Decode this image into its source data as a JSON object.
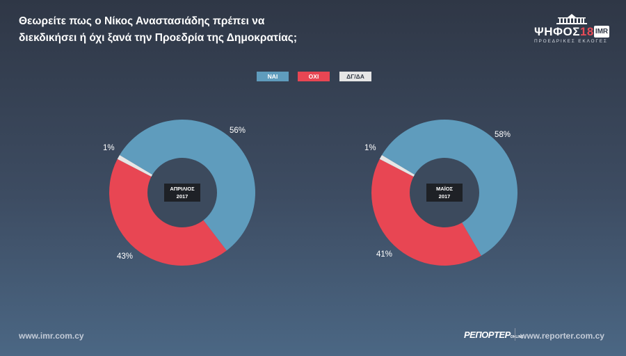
{
  "header": {
    "title_line1": "Θεωρείτε πως ο Νίκος Αναστασιάδης πρέπει να",
    "title_line2": "διεκδικήσει ή όχι ξανά την Προεδρία της Δημοκρατίας;"
  },
  "logo": {
    "vote_text": "ΨΗΦΟΣ",
    "vote_number": "18",
    "imr": "IMR",
    "subtitle": "ΠΡΟΕΔΡΙΚΕΣ ΕΚΛΟΓΕΣ",
    "building_icon": "parliament-building-icon"
  },
  "legend": [
    {
      "label": "ΝΑΙ",
      "color": "#5f9cbd"
    },
    {
      "label": "ΟΧΙ",
      "color": "#e84653"
    },
    {
      "label": "ΔΓ/ΔΑ",
      "color": "#e6e6e6"
    }
  ],
  "chart_data": [
    {
      "type": "pie",
      "center_label_line1": "ΑΠΡΙΛΙΟΣ",
      "center_label_line2": "2017",
      "categories": [
        "ΝΑΙ",
        "ΟΧΙ",
        "ΔΓ/ΔΑ"
      ],
      "values": [
        56,
        43,
        1
      ],
      "value_labels": [
        "56%",
        "43%",
        "1%"
      ],
      "colors": [
        "#5f9cbd",
        "#e84653",
        "#e6e6e6"
      ]
    },
    {
      "type": "pie",
      "center_label_line1": "ΜΑΪΟΣ",
      "center_label_line2": "2017",
      "categories": [
        "ΝΑΙ",
        "ΟΧΙ",
        "ΔΓ/ΔΑ"
      ],
      "values": [
        58,
        41,
        1
      ],
      "value_labels": [
        "58%",
        "41%",
        "1%"
      ],
      "colors": [
        "#5f9cbd",
        "#e84653",
        "#e6e6e6"
      ]
    }
  ],
  "footer": {
    "left_url": "www.imr.com.cy",
    "brand": "ΡΕΠΟΡΤΕΡ",
    "brand_suffix": "ONLINE",
    "right_url": "www.reporter.com.cy"
  }
}
